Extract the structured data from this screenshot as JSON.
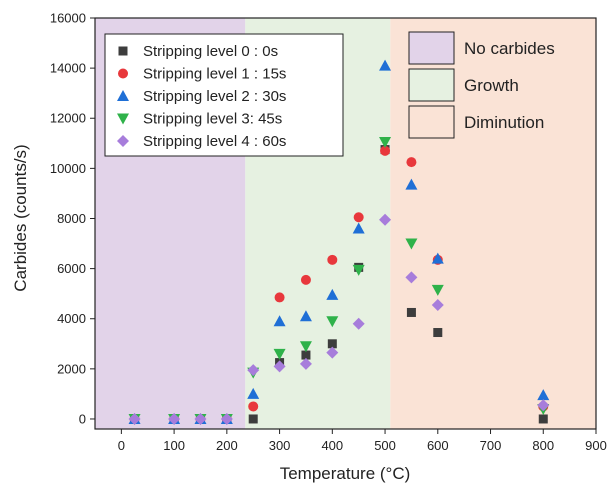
{
  "chart_data": {
    "type": "scatter",
    "title": "",
    "xlabel": "Temperature (°C)",
    "ylabel": "Carbides (counts/s)",
    "xlim": [
      -50,
      900
    ],
    "ylim": [
      -400,
      16000
    ],
    "xticks": [
      0,
      100,
      200,
      300,
      400,
      500,
      600,
      700,
      800,
      900
    ],
    "yticks": [
      0,
      2000,
      4000,
      6000,
      8000,
      10000,
      12000,
      14000,
      16000
    ],
    "grid": false,
    "legend_position": "top-left",
    "regions": [
      {
        "label": "No carbides",
        "x_start": -50,
        "x_end": 235,
        "color": "#e2d3e9"
      },
      {
        "label": "Growth",
        "x_start": 235,
        "x_end": 510,
        "color": "#e6f1e1"
      },
      {
        "label": "Diminution",
        "x_start": 510,
        "x_end": 900,
        "color": "#fae3d6"
      }
    ],
    "series": [
      {
        "name": "Stripping level 0 : 0s",
        "marker": "square",
        "color": "#3d3d3d",
        "points": [
          [
            25,
            0
          ],
          [
            100,
            0
          ],
          [
            150,
            0
          ],
          [
            200,
            0
          ],
          [
            250,
            0
          ],
          [
            300,
            2250
          ],
          [
            350,
            2550
          ],
          [
            400,
            3000
          ],
          [
            450,
            6050
          ],
          [
            500,
            10750
          ],
          [
            550,
            4250
          ],
          [
            600,
            3450
          ],
          [
            800,
            0
          ]
        ]
      },
      {
        "name": "Stripping level 1 : 15s",
        "marker": "circle",
        "color": "#e8383c",
        "points": [
          [
            25,
            0
          ],
          [
            100,
            0
          ],
          [
            150,
            0
          ],
          [
            200,
            0
          ],
          [
            250,
            500
          ],
          [
            300,
            4850
          ],
          [
            350,
            5550
          ],
          [
            400,
            6350
          ],
          [
            450,
            8050
          ],
          [
            500,
            10700
          ],
          [
            550,
            10250
          ],
          [
            600,
            6350
          ],
          [
            800,
            500
          ]
        ]
      },
      {
        "name": "Stripping level 2 : 30s",
        "marker": "triangle-up",
        "color": "#1f6fd6",
        "points": [
          [
            25,
            0
          ],
          [
            100,
            0
          ],
          [
            150,
            0
          ],
          [
            200,
            0
          ],
          [
            250,
            1000
          ],
          [
            300,
            3900
          ],
          [
            350,
            4100
          ],
          [
            400,
            4950
          ],
          [
            450,
            7600
          ],
          [
            500,
            14100
          ],
          [
            550,
            9350
          ],
          [
            600,
            6400
          ],
          [
            800,
            950
          ]
        ]
      },
      {
        "name": "Stripping level 3: 45s",
        "marker": "triangle-down",
        "color": "#2fb24a",
        "points": [
          [
            25,
            0
          ],
          [
            100,
            0
          ],
          [
            150,
            0
          ],
          [
            200,
            0
          ],
          [
            250,
            1850
          ],
          [
            300,
            2600
          ],
          [
            350,
            2900
          ],
          [
            400,
            3900
          ],
          [
            450,
            5950
          ],
          [
            500,
            11050
          ],
          [
            550,
            7000
          ],
          [
            600,
            5150
          ],
          [
            800,
            400
          ]
        ]
      },
      {
        "name": "Stripping level 4 : 60s",
        "marker": "diamond",
        "color": "#a77ddb",
        "points": [
          [
            25,
            0
          ],
          [
            100,
            0
          ],
          [
            150,
            0
          ],
          [
            200,
            0
          ],
          [
            250,
            1950
          ],
          [
            300,
            2100
          ],
          [
            350,
            2200
          ],
          [
            400,
            2650
          ],
          [
            450,
            3800
          ],
          [
            500,
            7950
          ],
          [
            550,
            5650
          ],
          [
            600,
            4550
          ],
          [
            800,
            550
          ]
        ]
      }
    ]
  }
}
